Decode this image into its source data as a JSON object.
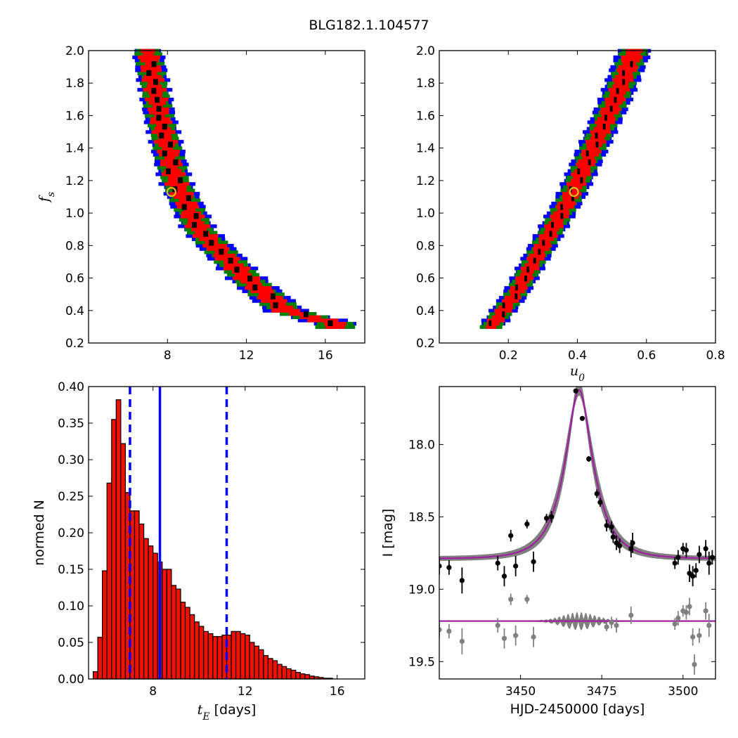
{
  "figure": {
    "title": "BLG182.1.104577"
  },
  "chart_data": [
    {
      "type": "heatmap",
      "name": "tE-fs posterior",
      "xlabel": "",
      "ylabel": "f_s",
      "xlim": [
        4,
        18
      ],
      "ylim": [
        0.2,
        2.0
      ],
      "xticks": [
        8,
        12,
        16
      ],
      "yticks": [
        0.2,
        0.4,
        0.6,
        0.8,
        1.0,
        1.2,
        1.4,
        1.6,
        1.8,
        2.0
      ],
      "band_curve": {
        "fs": [
          2.0,
          1.6,
          1.2,
          0.9,
          0.6,
          0.4,
          0.32
        ],
        "x": [
          7.0,
          7.6,
          8.4,
          9.6,
          12.0,
          14.0,
          16.5
        ]
      },
      "best_fit": {
        "x": 8.2,
        "y": 1.13
      },
      "colors": {
        "sigma3": "#0000ff",
        "sigma2": "#008000",
        "sigma1": "#ff0000",
        "peak": "#000000",
        "marker": "#d4c41a"
      }
    },
    {
      "type": "heatmap",
      "name": "u0-fs posterior",
      "xlabel": "u_0",
      "ylabel": "",
      "xlim": [
        0.0,
        0.8
      ],
      "ylim": [
        0.2,
        2.0
      ],
      "xticks": [
        0.2,
        0.4,
        0.6,
        0.8
      ],
      "yticks": [
        0.2,
        0.4,
        0.6,
        0.8,
        1.0,
        1.2,
        1.4,
        1.6,
        1.8,
        2.0
      ],
      "band_curve": {
        "fs": [
          0.3,
          0.5,
          0.8,
          1.1,
          1.4,
          1.7,
          2.0
        ],
        "x": [
          0.15,
          0.22,
          0.3,
          0.38,
          0.445,
          0.51,
          0.565
        ]
      },
      "best_fit": {
        "x": 0.39,
        "y": 1.13
      },
      "colors": {
        "sigma3": "#0000ff",
        "sigma2": "#008000",
        "sigma1": "#ff0000",
        "peak": "#000000",
        "marker": "#d4c41a"
      }
    },
    {
      "type": "bar",
      "name": "tE histogram",
      "xlabel": "t_E [days]",
      "ylabel": "normed N",
      "xlim": [
        5.2,
        17.2
      ],
      "ylim": [
        0.0,
        0.4
      ],
      "xticks": [
        8,
        12,
        16
      ],
      "yticks": [
        0.0,
        0.05,
        0.1,
        0.15,
        0.2,
        0.25,
        0.3,
        0.35,
        0.4
      ],
      "bin_width": 0.2,
      "bin_start": 5.4,
      "values": [
        0.01,
        0.057,
        0.148,
        0.268,
        0.355,
        0.382,
        0.322,
        0.255,
        0.23,
        0.23,
        0.212,
        0.192,
        0.182,
        0.172,
        0.16,
        0.15,
        0.15,
        0.128,
        0.123,
        0.105,
        0.098,
        0.088,
        0.078,
        0.072,
        0.065,
        0.062,
        0.058,
        0.058,
        0.06,
        0.06,
        0.065,
        0.065,
        0.062,
        0.06,
        0.05,
        0.045,
        0.04,
        0.032,
        0.028,
        0.025,
        0.02,
        0.017,
        0.014,
        0.012,
        0.009,
        0.007,
        0.006,
        0.004,
        0.003,
        0.002,
        0.001,
        0.001
      ],
      "median": 8.3,
      "interval": [
        7.0,
        11.2
      ],
      "colors": {
        "bar": "#ee1100",
        "line": "#0000ff"
      }
    },
    {
      "type": "scatter",
      "name": "light curve",
      "xlabel": "HJD-2450000 [days]",
      "ylabel": "I [mag]",
      "xlim": [
        3425,
        3510
      ],
      "ylim": [
        19.62,
        17.6
      ],
      "inverted_y": true,
      "xticks": [
        3450,
        3475,
        3500
      ],
      "yticks": [
        18.0,
        18.5,
        19.0,
        19.5
      ],
      "model": {
        "baseline": 18.79,
        "t0": 3468,
        "u0": 0.39,
        "tE": 8.2,
        "fs": 1.13
      },
      "residual_baseline": 19.22,
      "data": [
        {
          "x": 3425,
          "y": 18.84,
          "e": 0.06
        },
        {
          "x": 3428,
          "y": 18.85,
          "e": 0.05
        },
        {
          "x": 3432,
          "y": 18.94,
          "e": 0.09
        },
        {
          "x": 3443,
          "y": 18.82,
          "e": 0.05
        },
        {
          "x": 3445,
          "y": 18.91,
          "e": 0.07
        },
        {
          "x": 3447,
          "y": 18.63,
          "e": 0.04
        },
        {
          "x": 3448.5,
          "y": 18.84,
          "e": 0.07
        },
        {
          "x": 3452,
          "y": 18.55,
          "e": 0.03
        },
        {
          "x": 3454,
          "y": 18.81,
          "e": 0.07
        },
        {
          "x": 3458,
          "y": 18.51,
          "e": 0.03
        },
        {
          "x": 3459.5,
          "y": 18.5,
          "e": 0.04
        },
        {
          "x": 3467,
          "y": 17.63,
          "e": 0.01
        },
        {
          "x": 3469,
          "y": 17.82,
          "e": 0.015
        },
        {
          "x": 3471,
          "y": 18.1,
          "e": 0.02
        },
        {
          "x": 3473.5,
          "y": 18.34,
          "e": 0.03
        },
        {
          "x": 3474.5,
          "y": 18.4,
          "e": 0.03
        },
        {
          "x": 3476.5,
          "y": 18.56,
          "e": 0.04
        },
        {
          "x": 3478,
          "y": 18.57,
          "e": 0.04
        },
        {
          "x": 3478.5,
          "y": 18.64,
          "e": 0.04
        },
        {
          "x": 3479.5,
          "y": 18.68,
          "e": 0.05
        },
        {
          "x": 3480.5,
          "y": 18.7,
          "e": 0.05
        },
        {
          "x": 3484,
          "y": 18.72,
          "e": 0.06
        },
        {
          "x": 3484.5,
          "y": 18.68,
          "e": 0.07
        },
        {
          "x": 3497.5,
          "y": 18.82,
          "e": 0.04
        },
        {
          "x": 3498.5,
          "y": 18.78,
          "e": 0.05
        },
        {
          "x": 3500,
          "y": 18.72,
          "e": 0.04
        },
        {
          "x": 3501,
          "y": 18.73,
          "e": 0.05
        },
        {
          "x": 3502,
          "y": 18.89,
          "e": 0.06
        },
        {
          "x": 3503,
          "y": 18.91,
          "e": 0.07
        },
        {
          "x": 3504,
          "y": 18.87,
          "e": 0.05
        },
        {
          "x": 3505,
          "y": 18.76,
          "e": 0.06
        },
        {
          "x": 3507,
          "y": 18.72,
          "e": 0.06
        },
        {
          "x": 3508,
          "y": 18.82,
          "e": 0.08
        },
        {
          "x": 3509,
          "y": 18.78,
          "e": 0.05
        }
      ],
      "residuals": [
        {
          "x": 3425,
          "y": 19.28,
          "e": 0.06
        },
        {
          "x": 3428,
          "y": 19.29,
          "e": 0.05
        },
        {
          "x": 3432,
          "y": 19.36,
          "e": 0.09
        },
        {
          "x": 3443,
          "y": 19.25,
          "e": 0.05
        },
        {
          "x": 3445,
          "y": 19.34,
          "e": 0.07
        },
        {
          "x": 3447,
          "y": 19.07,
          "e": 0.04
        },
        {
          "x": 3448.5,
          "y": 19.32,
          "e": 0.07
        },
        {
          "x": 3452,
          "y": 19.07,
          "e": 0.03
        },
        {
          "x": 3454,
          "y": 19.33,
          "e": 0.07
        },
        {
          "x": 3476.5,
          "y": 19.26,
          "e": 0.03
        },
        {
          "x": 3478,
          "y": 19.23,
          "e": 0.04
        },
        {
          "x": 3479.5,
          "y": 19.25,
          "e": 0.05
        },
        {
          "x": 3484,
          "y": 19.18,
          "e": 0.06
        },
        {
          "x": 3497.5,
          "y": 19.24,
          "e": 0.04
        },
        {
          "x": 3498.5,
          "y": 19.2,
          "e": 0.05
        },
        {
          "x": 3500,
          "y": 19.15,
          "e": 0.04
        },
        {
          "x": 3501,
          "y": 19.16,
          "e": 0.05
        },
        {
          "x": 3502,
          "y": 19.12,
          "e": 0.06
        },
        {
          "x": 3503,
          "y": 19.33,
          "e": 0.06
        },
        {
          "x": 3503.5,
          "y": 19.52,
          "e": 0.07
        },
        {
          "x": 3505,
          "y": 19.32,
          "e": 0.05
        },
        {
          "x": 3507,
          "y": 19.15,
          "e": 0.06
        },
        {
          "x": 3508,
          "y": 19.25,
          "e": 0.08
        }
      ],
      "colors": {
        "data": "#000000",
        "residual": "#808080",
        "model": "#a020a0",
        "band": "#808080"
      }
    }
  ]
}
